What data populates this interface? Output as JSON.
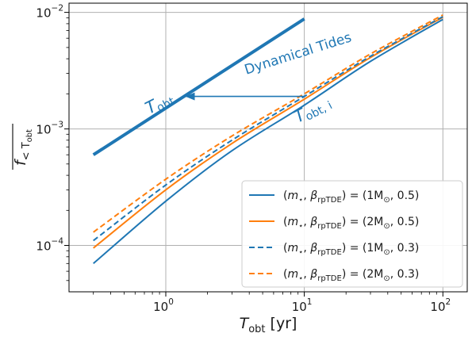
{
  "chart_data": {
    "type": "line",
    "xscale": "log",
    "yscale": "log",
    "xlim": [
      0.2,
      150
    ],
    "ylim": [
      4e-05,
      0.012
    ],
    "grid": true,
    "legend_position": "lower right",
    "x_ticks": [
      {
        "value": 1,
        "base": "10",
        "exp": "0"
      },
      {
        "value": 10,
        "base": "10",
        "exp": "1"
      },
      {
        "value": 100,
        "base": "10",
        "exp": "2"
      }
    ],
    "y_ticks": [
      {
        "value": 0.0001,
        "base": "10",
        "exp": "−4"
      },
      {
        "value": 0.001,
        "base": "10",
        "exp": "−3"
      },
      {
        "value": 0.01,
        "base": "10",
        "exp": "−2"
      }
    ],
    "xlabel": {
      "main": "T",
      "sub": "obt",
      "unit": " [yr]"
    },
    "ylabel": {
      "main": "f",
      "sub": "< T",
      "subsub": "obt"
    },
    "colors": {
      "blue": "#1f77b4",
      "orange": "#ff7f0e"
    },
    "series": [
      {
        "name": "(m⋆, βrpTDE) = (1M⊙, 0.5)",
        "label": {
          "beta_sub": "rpTDE",
          "mass": "1",
          "beta": "0.5"
        },
        "color": "#1f77b4",
        "dash": "solid",
        "x": [
          0.3,
          1,
          3,
          10,
          30,
          100
        ],
        "y": [
          7e-05,
          0.00024,
          0.00065,
          0.0016,
          0.0038,
          0.0087
        ]
      },
      {
        "name": "(m⋆, βrpTDE) = (2M⊙, 0.5)",
        "label": {
          "beta_sub": "rpTDE",
          "mass": "2",
          "beta": "0.5"
        },
        "color": "#ff7f0e",
        "dash": "solid",
        "x": [
          0.3,
          1,
          3,
          10,
          30,
          100
        ],
        "y": [
          9.5e-05,
          0.0003,
          0.00075,
          0.0018,
          0.0041,
          0.0091
        ]
      },
      {
        "name": "(m⋆, βrpTDE) = (1M⊙, 0.3)",
        "label": {
          "beta_sub": "rpTDE",
          "mass": "1",
          "beta": "0.3"
        },
        "color": "#1f77b4",
        "dash": "dashed",
        "x": [
          0.3,
          1,
          3,
          10,
          30,
          100
        ],
        "y": [
          0.00011,
          0.00033,
          0.0008,
          0.0019,
          0.0042,
          0.0092
        ]
      },
      {
        "name": "(m⋆, βrpTDE) = (2M⊙, 0.3)",
        "label": {
          "beta_sub": "rpTDE",
          "mass": "2",
          "beta": "0.3"
        },
        "color": "#ff7f0e",
        "dash": "dashed",
        "x": [
          0.3,
          1,
          3,
          10,
          30,
          100
        ],
        "y": [
          0.00013,
          0.00037,
          0.00087,
          0.002,
          0.0044,
          0.0095
        ]
      },
      {
        "name": "Dynamical Tides",
        "color": "#1f77b4",
        "dash": "thick",
        "x": [
          0.3,
          10
        ],
        "y": [
          0.0006,
          0.0088
        ]
      }
    ],
    "annotations": {
      "dynamical_tides": {
        "text": "Dynamical Tides",
        "x": 9,
        "y": 0.0044,
        "angle": -17.5
      },
      "t_obt": {
        "main": "T",
        "sub": "obt",
        "x": 0.9,
        "y": 0.00165,
        "angle": -27
      },
      "t_obt_i": {
        "main": "T",
        "sub": "obt, i",
        "x": 11.5,
        "y": 0.00145,
        "angle": -27
      },
      "arrow": {
        "from": [
          10,
          0.0019
        ],
        "to": [
          1.4,
          0.0019
        ]
      }
    }
  }
}
